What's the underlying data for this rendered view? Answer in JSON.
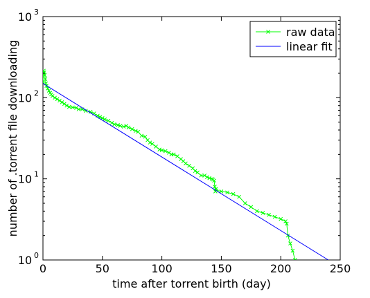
{
  "chart_data": {
    "type": "line",
    "title": "",
    "xlabel": "time after torrent birth (day)",
    "ylabel": "number of .torrent file downloading",
    "xlim": [
      0,
      250
    ],
    "ylim": [
      1,
      1000
    ],
    "yscale": "log",
    "xticks": [
      0,
      50,
      100,
      150,
      200,
      250
    ],
    "yticks": [
      {
        "value": 1,
        "base": "10",
        "exp": "0"
      },
      {
        "value": 10,
        "base": "10",
        "exp": "1"
      },
      {
        "value": 100,
        "base": "10",
        "exp": "2"
      },
      {
        "value": 1000,
        "base": "10",
        "exp": "3"
      }
    ],
    "grid": false,
    "legend_position": "top-right",
    "series": [
      {
        "name": "raw data",
        "color": "#00ff00",
        "marker": "x",
        "x": [
          0,
          0.3,
          0.6,
          1,
          1.5,
          2,
          2.5,
          3,
          4,
          5,
          6,
          7,
          8,
          10,
          12,
          14,
          16,
          18,
          20,
          22,
          25,
          28,
          30,
          33,
          36,
          40,
          43,
          46,
          48,
          50,
          52,
          55,
          58,
          60,
          63,
          65,
          68,
          70,
          72,
          75,
          78,
          80,
          83,
          86,
          88,
          90,
          92,
          95,
          98,
          100,
          103,
          106,
          108,
          110,
          113,
          116,
          118,
          120,
          123,
          126,
          128,
          130,
          133,
          136,
          138,
          140,
          142,
          143,
          144,
          144.5,
          145,
          145.5,
          146,
          150,
          155,
          160,
          165,
          170,
          175,
          180,
          185,
          190,
          195,
          200,
          204,
          205,
          206,
          208,
          210,
          212
        ],
        "y": [
          155,
          200,
          215,
          205,
          190,
          170,
          150,
          140,
          130,
          122,
          115,
          110,
          105,
          100,
          96,
          92,
          88,
          84,
          80,
          77,
          76,
          75,
          72,
          72,
          69,
          67,
          64,
          60,
          58,
          56,
          54,
          52,
          49,
          47,
          46,
          45,
          44,
          45,
          43,
          41,
          39,
          38,
          34,
          33,
          30,
          28,
          27,
          25,
          23,
          22.5,
          22,
          21,
          20,
          20,
          19,
          17.5,
          16.5,
          15.5,
          14.5,
          13.5,
          12.5,
          12,
          11,
          11,
          10.5,
          10.2,
          10,
          9.8,
          9.5,
          8,
          7,
          7.5,
          7.2,
          7,
          6.8,
          6.5,
          6,
          5,
          4.5,
          4,
          3.8,
          3.6,
          3.4,
          3.2,
          3.0,
          2.8,
          2.0,
          1.6,
          1.3,
          1.0
        ]
      },
      {
        "name": "linear fit",
        "color": "#0000ff",
        "marker": "none",
        "x": [
          0,
          240
        ],
        "y": [
          150,
          1
        ]
      }
    ]
  }
}
